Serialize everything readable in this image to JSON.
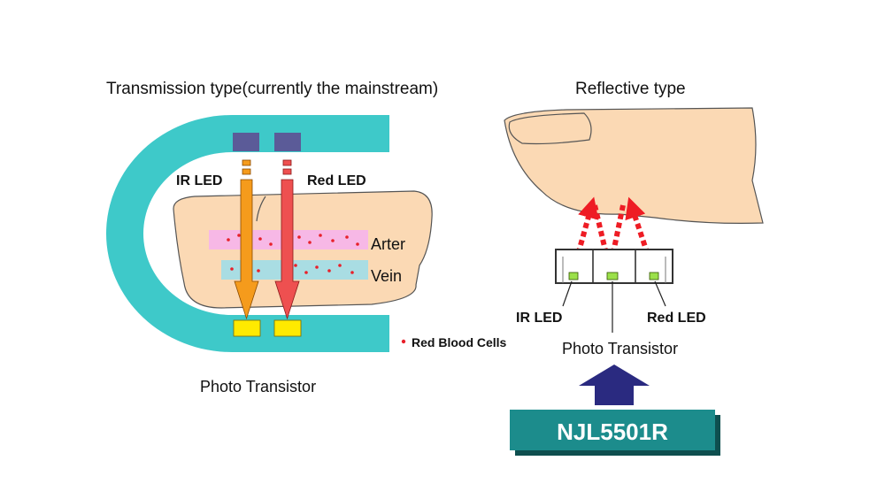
{
  "transmission": {
    "title": "Transmission type(currently the mainstream)",
    "ir_led_label": "IR LED",
    "red_led_label": "Red LED",
    "artery_label": "Arter",
    "vein_label": "Vein",
    "rbc_legend": "Red Blood Cells",
    "photo_transistor_label": "Photo Transistor"
  },
  "reflective": {
    "title": "Reflective type",
    "ir_led_label": "IR LED",
    "red_led_label": "Red LED",
    "photo_transistor_label": "Photo Transistor",
    "product_label": "NJL5501R"
  },
  "colors": {
    "clip": "#3ec9c9",
    "finger": "#fbd9b4",
    "artery_band": "#f7b8e6",
    "vein_band": "#a9dde3",
    "led_blocks": "#5b5b98",
    "ir_arrow": "#f59b1c",
    "red_arrow": "#ee5050",
    "detector": "#ffea00",
    "rbc_dot": "#e8202a",
    "reflect_arrow": "#ee1c24",
    "sensor_chip": "#9be04a",
    "up_arrow": "#2a2a80",
    "product_badge": "#1c8c8c"
  }
}
